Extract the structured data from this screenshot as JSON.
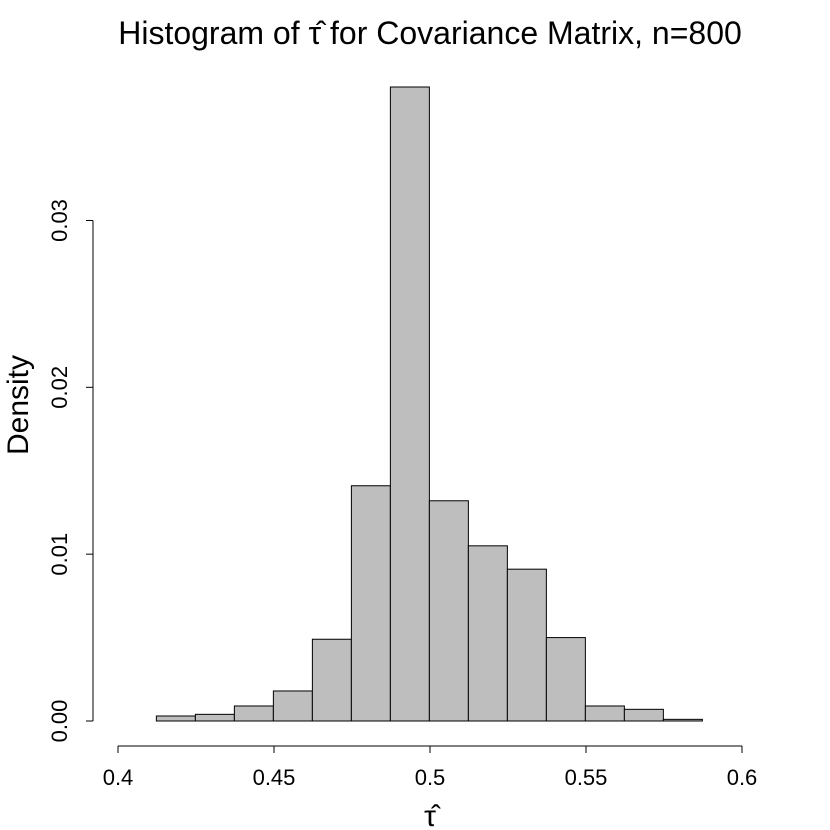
{
  "chart_data": {
    "type": "bar",
    "title_prefix": "Histogram of",
    "title_symbol": "τ̂",
    "title_suffix": "for Covariance Matrix, n=800",
    "xlabel": "τ̂",
    "ylabel": "Density",
    "xlim": [
      0.4,
      0.6
    ],
    "ylim": [
      0.0,
      0.038
    ],
    "x_ticks": [
      "0.4",
      "0.45",
      "0.5",
      "0.55",
      "0.6"
    ],
    "y_ticks": [
      "0.00",
      "0.01",
      "0.02",
      "0.03"
    ],
    "bins": [
      {
        "start": 0.3997,
        "end": 0.4123,
        "density": 0.0
      },
      {
        "start": 0.4123,
        "end": 0.4248,
        "density": 0.0003
      },
      {
        "start": 0.4248,
        "end": 0.4373,
        "density": 0.0004
      },
      {
        "start": 0.4373,
        "end": 0.4498,
        "density": 0.0009
      },
      {
        "start": 0.4498,
        "end": 0.4623,
        "density": 0.0018
      },
      {
        "start": 0.4623,
        "end": 0.4748,
        "density": 0.0049
      },
      {
        "start": 0.4748,
        "end": 0.4873,
        "density": 0.0141
      },
      {
        "start": 0.4873,
        "end": 0.4998,
        "density": 0.038
      },
      {
        "start": 0.4998,
        "end": 0.5123,
        "density": 0.0132
      },
      {
        "start": 0.5123,
        "end": 0.5248,
        "density": 0.0105
      },
      {
        "start": 0.5248,
        "end": 0.5373,
        "density": 0.0091
      },
      {
        "start": 0.5373,
        "end": 0.5498,
        "density": 0.005
      },
      {
        "start": 0.5498,
        "end": 0.5623,
        "density": 0.0009
      },
      {
        "start": 0.5623,
        "end": 0.5748,
        "density": 0.0007
      },
      {
        "start": 0.5748,
        "end": 0.5873,
        "density": 0.0001
      }
    ],
    "bar_fill": "#bebebe",
    "bar_stroke": "#000000",
    "grid": false,
    "legend": "none"
  }
}
